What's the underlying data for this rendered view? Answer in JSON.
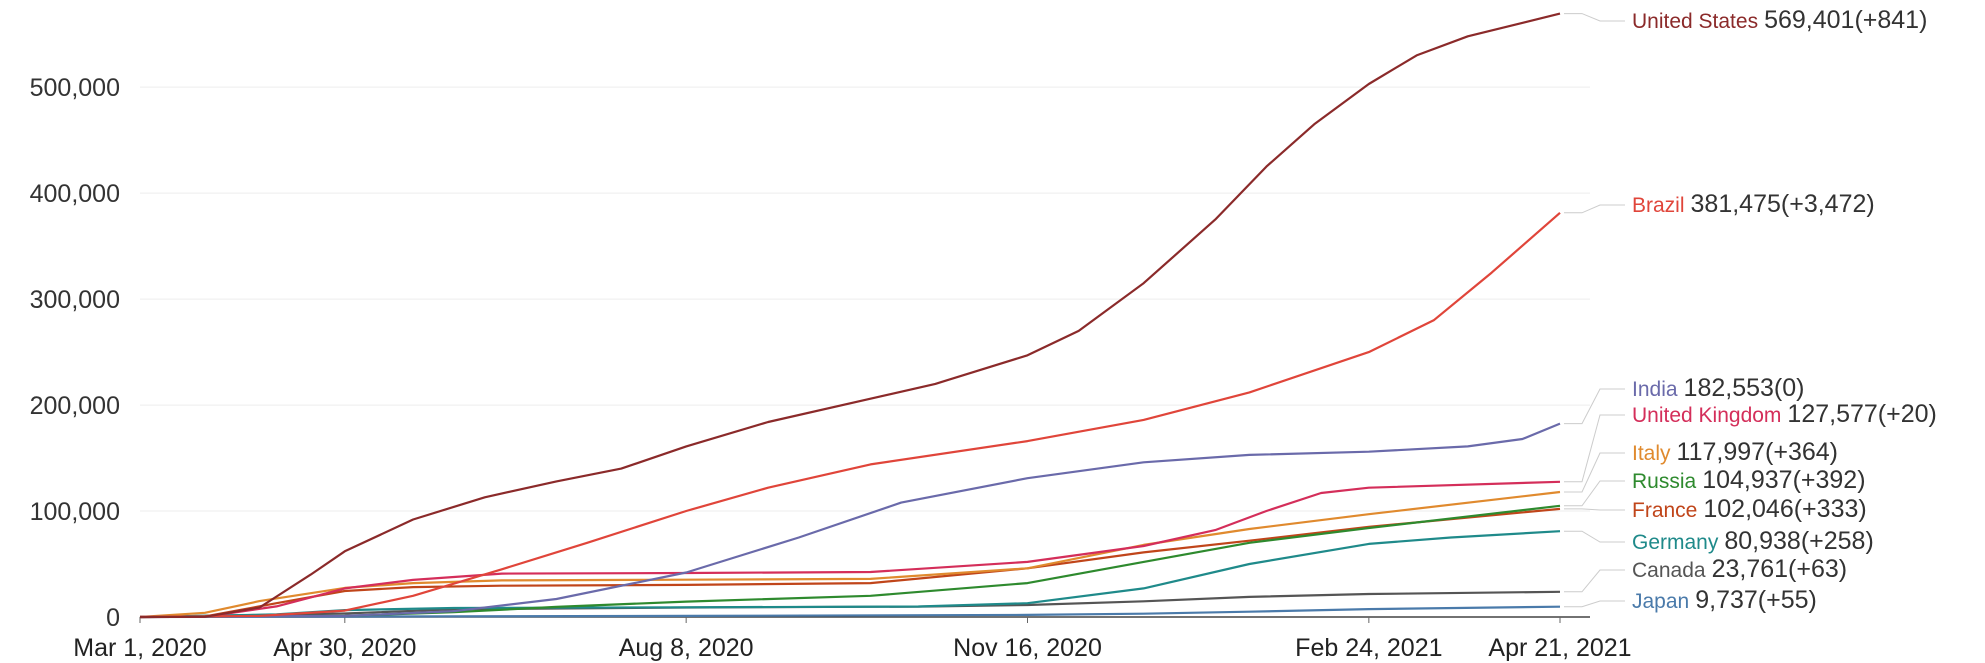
{
  "chart_data": {
    "type": "line",
    "title": "",
    "xlabel": "",
    "ylabel": "",
    "x_range": [
      "2020-03-01",
      "2021-04-21"
    ],
    "ylim": [
      0,
      570000
    ],
    "x_ticks": [
      {
        "date": "2020-03-01",
        "label": "Mar 1, 2020"
      },
      {
        "date": "2020-04-30",
        "label": "Apr 30, 2020"
      },
      {
        "date": "2020-08-08",
        "label": "Aug 8, 2020"
      },
      {
        "date": "2020-11-16",
        "label": "Nov 16, 2020"
      },
      {
        "date": "2021-02-24",
        "label": "Feb 24, 2021"
      },
      {
        "date": "2021-04-21",
        "label": "Apr 21, 2021"
      }
    ],
    "y_ticks": [
      {
        "value": 0,
        "label": "0"
      },
      {
        "value": 100000,
        "label": "100,000"
      },
      {
        "value": 200000,
        "label": "200,000"
      },
      {
        "value": 300000,
        "label": "300,000"
      },
      {
        "value": 400000,
        "label": "400,000"
      },
      {
        "value": 500000,
        "label": "500,000"
      }
    ],
    "grid": true,
    "legend": "end-of-line labels on right",
    "series": [
      {
        "name": "United States",
        "final": "569,401",
        "change": "(+841)",
        "color": "#8b2a2a",
        "points": [
          [
            "2020-03-01",
            0
          ],
          [
            "2020-03-20",
            200
          ],
          [
            "2020-04-05",
            9000
          ],
          [
            "2020-04-20",
            40000
          ],
          [
            "2020-04-30",
            62000
          ],
          [
            "2020-05-20",
            92000
          ],
          [
            "2020-06-10",
            113000
          ],
          [
            "2020-07-01",
            128000
          ],
          [
            "2020-07-20",
            140000
          ],
          [
            "2020-08-08",
            161000
          ],
          [
            "2020-09-01",
            184000
          ],
          [
            "2020-10-01",
            206000
          ],
          [
            "2020-10-20",
            220000
          ],
          [
            "2020-11-16",
            247000
          ],
          [
            "2020-12-01",
            270000
          ],
          [
            "2020-12-20",
            315000
          ],
          [
            "2021-01-10",
            375000
          ],
          [
            "2021-01-25",
            425000
          ],
          [
            "2021-02-08",
            465000
          ],
          [
            "2021-02-24",
            503000
          ],
          [
            "2021-03-10",
            530000
          ],
          [
            "2021-03-25",
            548000
          ],
          [
            "2021-04-21",
            569401
          ]
        ]
      },
      {
        "name": "Brazil",
        "final": "381,475",
        "change": "(+3,472)",
        "color": "#e0453a",
        "points": [
          [
            "2020-03-01",
            0
          ],
          [
            "2020-04-05",
            1000
          ],
          [
            "2020-04-30",
            6000
          ],
          [
            "2020-05-20",
            20000
          ],
          [
            "2020-06-15",
            45000
          ],
          [
            "2020-07-10",
            70000
          ],
          [
            "2020-08-08",
            100000
          ],
          [
            "2020-09-01",
            122000
          ],
          [
            "2020-10-01",
            144000
          ],
          [
            "2020-11-16",
            166000
          ],
          [
            "2020-12-20",
            186000
          ],
          [
            "2021-01-20",
            212000
          ],
          [
            "2021-02-24",
            250000
          ],
          [
            "2021-03-15",
            280000
          ],
          [
            "2021-04-01",
            325000
          ],
          [
            "2021-04-21",
            381475
          ]
        ]
      },
      {
        "name": "India",
        "final": "182,553",
        "change": "(0)",
        "color": "#6a6aaa",
        "points": [
          [
            "2020-03-01",
            0
          ],
          [
            "2020-04-30",
            1000
          ],
          [
            "2020-06-01",
            5500
          ],
          [
            "2020-07-01",
            17000
          ],
          [
            "2020-08-08",
            42000
          ],
          [
            "2020-09-10",
            75000
          ],
          [
            "2020-10-10",
            108000
          ],
          [
            "2020-11-16",
            131000
          ],
          [
            "2020-12-20",
            146000
          ],
          [
            "2021-01-20",
            153000
          ],
          [
            "2021-02-24",
            156000
          ],
          [
            "2021-03-25",
            161000
          ],
          [
            "2021-04-10",
            168000
          ],
          [
            "2021-04-21",
            182553
          ]
        ]
      },
      {
        "name": "United Kingdom",
        "final": "127,577",
        "change": "(+20)",
        "color": "#d42e5a",
        "points": [
          [
            "2020-03-01",
            0
          ],
          [
            "2020-03-20",
            200
          ],
          [
            "2020-04-10",
            10000
          ],
          [
            "2020-04-30",
            27000
          ],
          [
            "2020-05-20",
            35000
          ],
          [
            "2020-06-15",
            41000
          ],
          [
            "2020-08-08",
            41500
          ],
          [
            "2020-10-01",
            42500
          ],
          [
            "2020-11-16",
            52000
          ],
          [
            "2020-12-20",
            67000
          ],
          [
            "2021-01-10",
            82000
          ],
          [
            "2021-01-25",
            100000
          ],
          [
            "2021-02-10",
            117000
          ],
          [
            "2021-02-24",
            122000
          ],
          [
            "2021-04-21",
            127577
          ]
        ]
      },
      {
        "name": "Italy",
        "final": "117,997",
        "change": "(+364)",
        "color": "#e08a2e",
        "points": [
          [
            "2020-03-01",
            0
          ],
          [
            "2020-03-20",
            4000
          ],
          [
            "2020-04-05",
            15000
          ],
          [
            "2020-04-30",
            27500
          ],
          [
            "2020-05-20",
            32000
          ],
          [
            "2020-06-15",
            34500
          ],
          [
            "2020-08-08",
            35200
          ],
          [
            "2020-10-01",
            36000
          ],
          [
            "2020-11-16",
            46000
          ],
          [
            "2020-12-20",
            68000
          ],
          [
            "2021-01-20",
            83000
          ],
          [
            "2021-02-24",
            97000
          ],
          [
            "2021-04-21",
            117997
          ]
        ]
      },
      {
        "name": "Russia",
        "final": "104,937",
        "change": "(+392)",
        "color": "#2e8a2e",
        "points": [
          [
            "2020-03-01",
            0
          ],
          [
            "2020-04-30",
            1100
          ],
          [
            "2020-06-01",
            4500
          ],
          [
            "2020-07-01",
            9500
          ],
          [
            "2020-08-08",
            14500
          ],
          [
            "2020-10-01",
            20000
          ],
          [
            "2020-11-16",
            32000
          ],
          [
            "2020-12-20",
            52000
          ],
          [
            "2021-01-20",
            70000
          ],
          [
            "2021-02-24",
            84000
          ],
          [
            "2021-04-21",
            104937
          ]
        ]
      },
      {
        "name": "France",
        "final": "102,046",
        "change": "(+333)",
        "color": "#c0451a",
        "points": [
          [
            "2020-03-01",
            0
          ],
          [
            "2020-03-20",
            500
          ],
          [
            "2020-04-10",
            13000
          ],
          [
            "2020-04-30",
            24500
          ],
          [
            "2020-05-20",
            28200
          ],
          [
            "2020-06-15",
            29500
          ],
          [
            "2020-08-08",
            30300
          ],
          [
            "2020-10-01",
            32000
          ],
          [
            "2020-11-16",
            46000
          ],
          [
            "2020-12-20",
            61000
          ],
          [
            "2021-01-20",
            72000
          ],
          [
            "2021-02-24",
            85000
          ],
          [
            "2021-04-21",
            102046
          ]
        ]
      },
      {
        "name": "Germany",
        "final": "80,938",
        "change": "(+258)",
        "color": "#1f8a8a",
        "points": [
          [
            "2020-03-01",
            0
          ],
          [
            "2020-04-10",
            2500
          ],
          [
            "2020-04-30",
            6500
          ],
          [
            "2020-06-01",
            8500
          ],
          [
            "2020-08-08",
            9200
          ],
          [
            "2020-10-15",
            9900
          ],
          [
            "2020-11-16",
            13000
          ],
          [
            "2020-12-20",
            27000
          ],
          [
            "2021-01-20",
            50000
          ],
          [
            "2021-02-24",
            69000
          ],
          [
            "2021-03-20",
            75000
          ],
          [
            "2021-04-21",
            80938
          ]
        ]
      },
      {
        "name": "Canada",
        "final": "23,761",
        "change": "(+63)",
        "color": "#555555",
        "points": [
          [
            "2020-03-01",
            0
          ],
          [
            "2020-04-30",
            3300
          ],
          [
            "2020-06-01",
            7300
          ],
          [
            "2020-08-08",
            9000
          ],
          [
            "2020-10-15",
            9800
          ],
          [
            "2020-11-16",
            11300
          ],
          [
            "2020-12-20",
            14800
          ],
          [
            "2021-01-20",
            19000
          ],
          [
            "2021-02-24",
            21700
          ],
          [
            "2021-04-21",
            23761
          ]
        ]
      },
      {
        "name": "Japan",
        "final": "9,737",
        "change": "(+55)",
        "color": "#4a7aaa",
        "points": [
          [
            "2020-03-01",
            0
          ],
          [
            "2020-04-30",
            400
          ],
          [
            "2020-08-08",
            1000
          ],
          [
            "2020-11-16",
            2000
          ],
          [
            "2020-12-20",
            3100
          ],
          [
            "2021-01-20",
            5000
          ],
          [
            "2021-02-24",
            7500
          ],
          [
            "2021-04-21",
            9737
          ]
        ]
      }
    ]
  }
}
